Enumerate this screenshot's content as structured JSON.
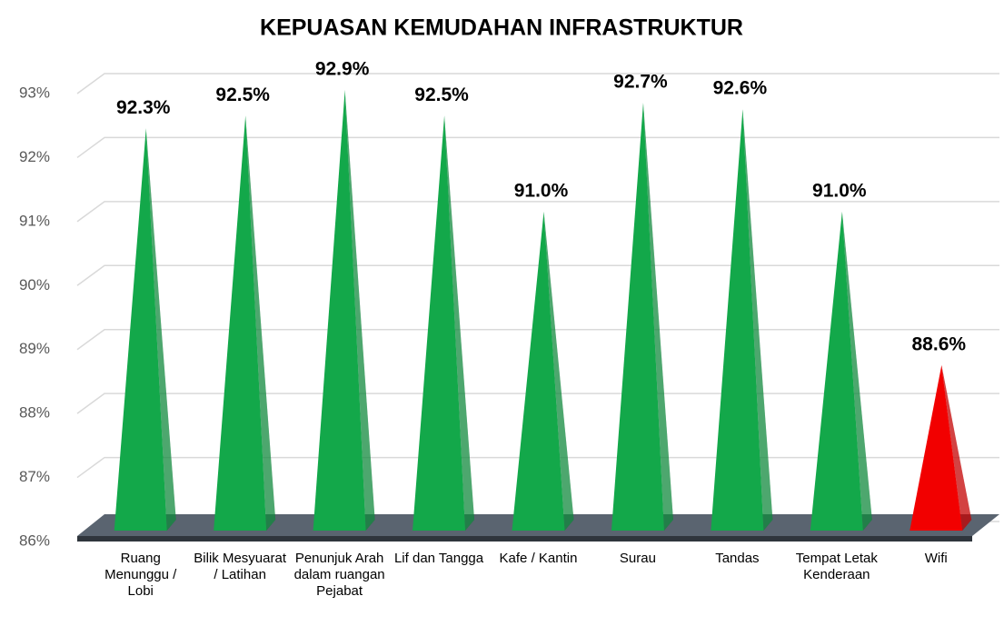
{
  "chart_data": {
    "type": "pyramid",
    "title": "KEPUASAN KEMUDAHAN INFRASTRUKTUR",
    "categories": [
      "Ruang Menunggu / Lobi",
      "Bilik Mesyuarat / Latihan",
      "Penunjuk Arah dalam ruangan Pejabat",
      "Lif dan Tangga",
      "Kafe / Kantin",
      "Surau",
      "Tandas",
      "Tempat Letak Kenderaan",
      "Wifi"
    ],
    "values": [
      92.3,
      92.5,
      92.9,
      92.5,
      91.0,
      92.7,
      92.6,
      91.0,
      88.6
    ],
    "value_labels": [
      "92.3%",
      "92.5%",
      "92.9%",
      "92.5%",
      "91.0%",
      "92.7%",
      "92.6%",
      "91.0%",
      "88.6%"
    ],
    "colors": [
      "#13a84a",
      "#13a84a",
      "#13a84a",
      "#13a84a",
      "#13a84a",
      "#13a84a",
      "#13a84a",
      "#13a84a",
      "#f20000"
    ],
    "ylim": [
      86,
      93
    ],
    "yticks": [
      {
        "value": 86,
        "label": "86%"
      },
      {
        "value": 87,
        "label": "87%"
      },
      {
        "value": 88,
        "label": "88%"
      },
      {
        "value": 89,
        "label": "89%"
      },
      {
        "value": 90,
        "label": "90%"
      },
      {
        "value": 91,
        "label": "91%"
      },
      {
        "value": 92,
        "label": "92%"
      },
      {
        "value": 93,
        "label": "93%"
      }
    ],
    "grid": true
  }
}
